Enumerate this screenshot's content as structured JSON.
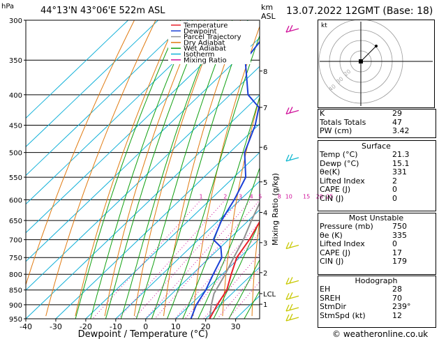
{
  "header": {
    "hpa_unit": "hPa",
    "location": "44°13'N  43°06'E  522m  ASL",
    "km_unit": "km",
    "asl": "ASL",
    "datetime": "13.07.2022  12GMT  (Base: 18)"
  },
  "legend": [
    {
      "label": "Temperature",
      "color": "#e8202a"
    },
    {
      "label": "Dewpoint",
      "color": "#1a3fd6"
    },
    {
      "label": "Parcel Trajectory",
      "color": "#909090"
    },
    {
      "label": "Dry Adiabat",
      "color": "#e07a10"
    },
    {
      "label": "Wet Adiabat",
      "color": "#10a010"
    },
    {
      "label": "Isotherm",
      "color": "#10b0d8"
    },
    {
      "label": "Mixing Ratio",
      "color": "#d0109a"
    }
  ],
  "colors": {
    "temperature": "#e8202a",
    "dewpoint": "#1a3fd6",
    "parcel": "#909090",
    "dry_adiabat": "#e07a10",
    "wet_adiabat": "#10a010",
    "isotherm": "#10b0d8",
    "mixing_ratio": "#d0109a",
    "wind_barb_high": "#d0109a",
    "wind_barb_mid": "#10b8d0",
    "wind_barb_low": "#c8c800"
  },
  "chart_data": {
    "type": "skew-t",
    "xlabel": "Dewpoint / Temperature (°C)",
    "ylabel_right": "Mixing Ratio (g/kg)",
    "pressure_ticks": [
      300,
      350,
      400,
      450,
      500,
      550,
      600,
      650,
      700,
      750,
      800,
      850,
      900,
      950
    ],
    "temp_ticks": [
      -40,
      -30,
      -20,
      -10,
      0,
      10,
      20,
      30
    ],
    "x_range": [
      -40,
      38
    ],
    "km_ticks": [
      {
        "label": "8",
        "p": 365
      },
      {
        "label": "7",
        "p": 420
      },
      {
        "label": "6",
        "p": 490
      },
      {
        "label": "5",
        "p": 560
      },
      {
        "label": "4",
        "p": 630
      },
      {
        "label": "3",
        "p": 708
      },
      {
        "label": "2",
        "p": 795
      },
      {
        "label": "LCL",
        "p": 862
      },
      {
        "label": "1",
        "p": 898
      }
    ],
    "mixing_ratio_labels": [
      "1",
      "2",
      "3",
      "4",
      "5",
      "8",
      "10",
      "15",
      "20",
      "25"
    ],
    "mixing_ratio_values": [
      1,
      2,
      3,
      4,
      5,
      8,
      10,
      15,
      20,
      25
    ],
    "temperature": [
      {
        "p": 950,
        "t": 21.3
      },
      {
        "p": 900,
        "t": 19
      },
      {
        "p": 850,
        "t": 17
      },
      {
        "p": 800,
        "t": 13
      },
      {
        "p": 750,
        "t": 9
      },
      {
        "p": 700,
        "t": 7
      },
      {
        "p": 650,
        "t": 4
      },
      {
        "p": 600,
        "t": -1
      },
      {
        "p": 550,
        "t": -6
      },
      {
        "p": 500,
        "t": -11
      },
      {
        "p": 450,
        "t": -16
      },
      {
        "p": 400,
        "t": -23
      },
      {
        "p": 350,
        "t": -31
      },
      {
        "p": 300,
        "t": -39
      }
    ],
    "dewpoint": [
      {
        "p": 950,
        "t": 15.1
      },
      {
        "p": 900,
        "t": 12
      },
      {
        "p": 850,
        "t": 10
      },
      {
        "p": 800,
        "t": 7
      },
      {
        "p": 750,
        "t": 4
      },
      {
        "p": 720,
        "t": 0
      },
      {
        "p": 700,
        "t": -5
      },
      {
        "p": 650,
        "t": -9
      },
      {
        "p": 600,
        "t": -12
      },
      {
        "p": 550,
        "t": -16
      },
      {
        "p": 500,
        "t": -25
      },
      {
        "p": 450,
        "t": -31
      },
      {
        "p": 420,
        "t": -36
      },
      {
        "p": 400,
        "t": -44
      },
      {
        "p": 350,
        "t": -57
      },
      {
        "p": 320,
        "t": -59
      },
      {
        "p": 300,
        "t": -62
      }
    ],
    "parcel": [
      {
        "p": 950,
        "t": 21.3
      },
      {
        "p": 900,
        "t": 17
      },
      {
        "p": 862,
        "t": 14
      },
      {
        "p": 800,
        "t": 11
      },
      {
        "p": 750,
        "t": 8
      },
      {
        "p": 700,
        "t": 5
      },
      {
        "p": 650,
        "t": 1
      },
      {
        "p": 600,
        "t": -3
      },
      {
        "p": 550,
        "t": -8
      },
      {
        "p": 500,
        "t": -13
      },
      {
        "p": 450,
        "t": -19
      },
      {
        "p": 400,
        "t": -27
      },
      {
        "p": 350,
        "t": -36
      },
      {
        "p": 300,
        "t": -46
      }
    ]
  },
  "hodograph": {
    "unit_label": "kt",
    "ring_labels": [
      "20",
      "30",
      "40"
    ]
  },
  "indices": [
    {
      "label": "K",
      "value": "29"
    },
    {
      "label": "Totals Totals",
      "value": "47"
    },
    {
      "label": "PW (cm)",
      "value": "3.42"
    }
  ],
  "surface": {
    "title": "Surface",
    "rows": [
      {
        "label": "Temp (°C)",
        "value": "21.3"
      },
      {
        "label": "Dewp (°C)",
        "value": "15.1"
      },
      {
        "label": "θe(K)",
        "value": "331"
      },
      {
        "label": "Lifted Index",
        "value": "2"
      },
      {
        "label": "CAPE (J)",
        "value": "0"
      },
      {
        "label": "CIN (J)",
        "value": "0"
      }
    ]
  },
  "most_unstable": {
    "title": "Most Unstable",
    "rows": [
      {
        "label": "Pressure (mb)",
        "value": "750"
      },
      {
        "label": "θe (K)",
        "value": "335"
      },
      {
        "label": "Lifted Index",
        "value": "0"
      },
      {
        "label": "CAPE (J)",
        "value": "17"
      },
      {
        "label": "CIN (J)",
        "value": "179"
      }
    ]
  },
  "hodograph_table": {
    "title": "Hodograph",
    "rows": [
      {
        "label": "EH",
        "value": "28"
      },
      {
        "label": "SREH",
        "value": "70"
      },
      {
        "label": "StmDir",
        "value": "239°"
      },
      {
        "label": "StmSpd (kt)",
        "value": "12"
      }
    ]
  },
  "footer": {
    "copyright": "© weatheronline.co.uk"
  }
}
